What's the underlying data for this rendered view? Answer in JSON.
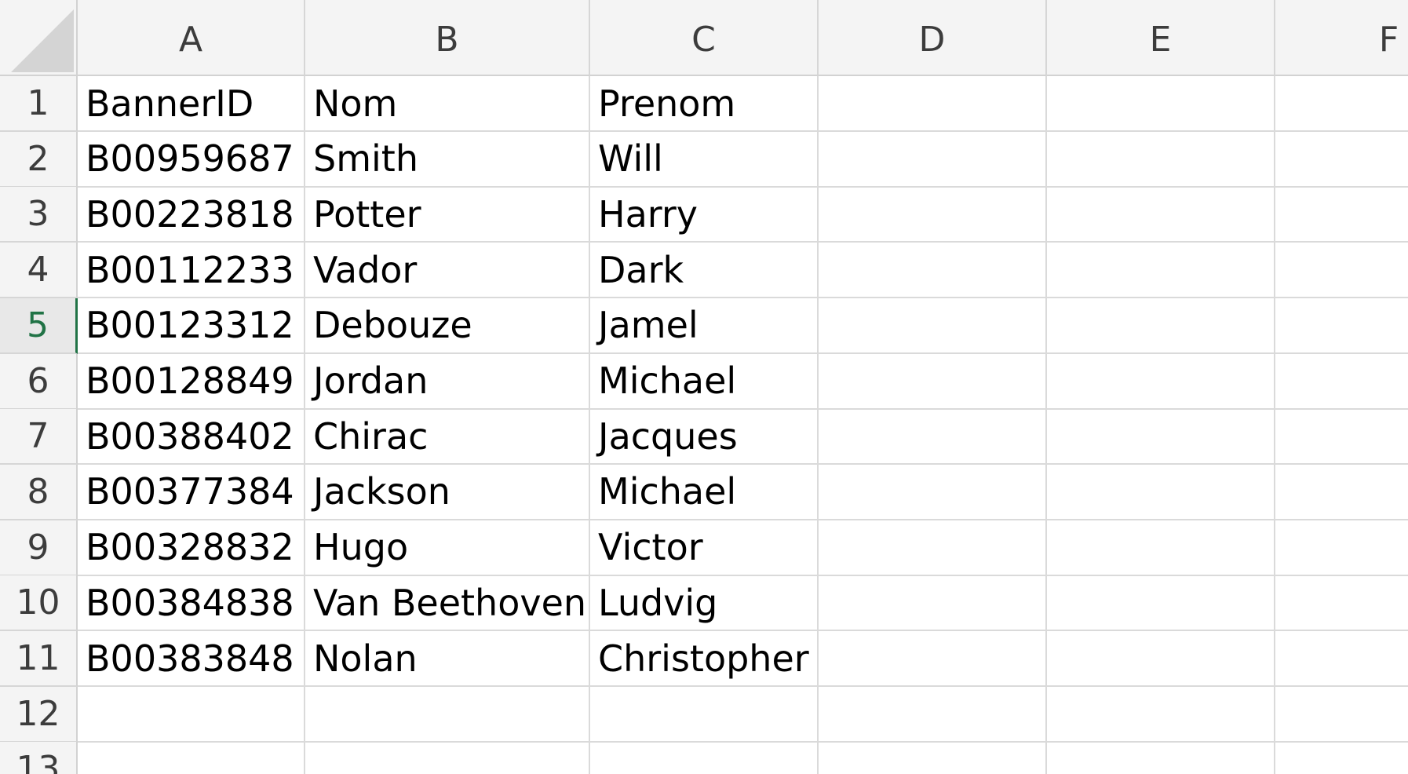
{
  "columns": [
    "A",
    "B",
    "C",
    "D",
    "E",
    "F"
  ],
  "rows": [
    {
      "num": "1",
      "cells": [
        "BannerID",
        "Nom",
        "Prenom",
        "",
        "",
        ""
      ]
    },
    {
      "num": "2",
      "cells": [
        "B00959687",
        "Smith",
        "Will",
        "",
        "",
        ""
      ]
    },
    {
      "num": "3",
      "cells": [
        "B00223818",
        "Potter",
        "Harry",
        "",
        "",
        ""
      ]
    },
    {
      "num": "4",
      "cells": [
        "B00112233",
        "Vador",
        "Dark",
        "",
        "",
        ""
      ]
    },
    {
      "num": "5",
      "cells": [
        "B00123312",
        "Debouze",
        "Jamel",
        "",
        "",
        ""
      ]
    },
    {
      "num": "6",
      "cells": [
        "B00128849",
        "Jordan",
        "Michael",
        "",
        "",
        ""
      ]
    },
    {
      "num": "7",
      "cells": [
        "B00388402",
        "Chirac",
        "Jacques",
        "",
        "",
        ""
      ]
    },
    {
      "num": "8",
      "cells": [
        "B00377384",
        "Jackson",
        "Michael",
        "",
        "",
        ""
      ]
    },
    {
      "num": "9",
      "cells": [
        "B00328832",
        "Hugo",
        "Victor",
        "",
        "",
        ""
      ]
    },
    {
      "num": "10",
      "cells": [
        "B00384838",
        "Van Beethoven",
        "Ludvig",
        "",
        "",
        ""
      ]
    },
    {
      "num": "11",
      "cells": [
        "B00383848",
        "Nolan",
        "Christopher",
        "",
        "",
        ""
      ]
    },
    {
      "num": "12",
      "cells": [
        "",
        "",
        "",
        "",
        "",
        ""
      ]
    },
    {
      "num": "13",
      "cells": [
        "",
        "",
        "",
        "",
        "",
        ""
      ]
    }
  ],
  "selected_row": "5",
  "colors": {
    "header_bg": "#f4f4f4",
    "grid_line": "#dadada",
    "accent": "#217346"
  }
}
